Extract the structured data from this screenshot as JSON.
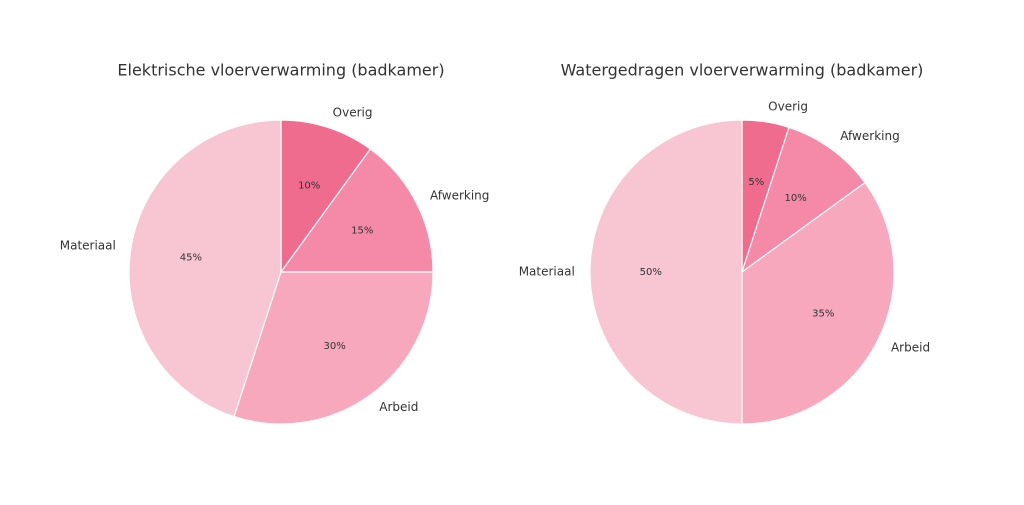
{
  "chart_data": [
    {
      "type": "pie",
      "title": "Elektrische vloerverwarming (badkamer)",
      "categories": [
        "Overig",
        "Afwerking",
        "Arbeid",
        "Materiaal"
      ],
      "values": [
        10,
        15,
        30,
        45
      ],
      "value_labels": [
        "10%",
        "15%",
        "30%",
        "45%"
      ],
      "colors": [
        "#f06c8e",
        "#f48aa8",
        "#f7a8bc",
        "#f8c6d3"
      ]
    },
    {
      "type": "pie",
      "title": "Watergedragen vloerverwarming (badkamer)",
      "categories": [
        "Overig",
        "Afwerking",
        "Arbeid",
        "Materiaal"
      ],
      "values": [
        5,
        10,
        35,
        50
      ],
      "value_labels": [
        "5%",
        "10%",
        "35%",
        "50%"
      ],
      "colors": [
        "#f06c8e",
        "#f48aa8",
        "#f7a8bc",
        "#f8c6d3"
      ]
    }
  ]
}
